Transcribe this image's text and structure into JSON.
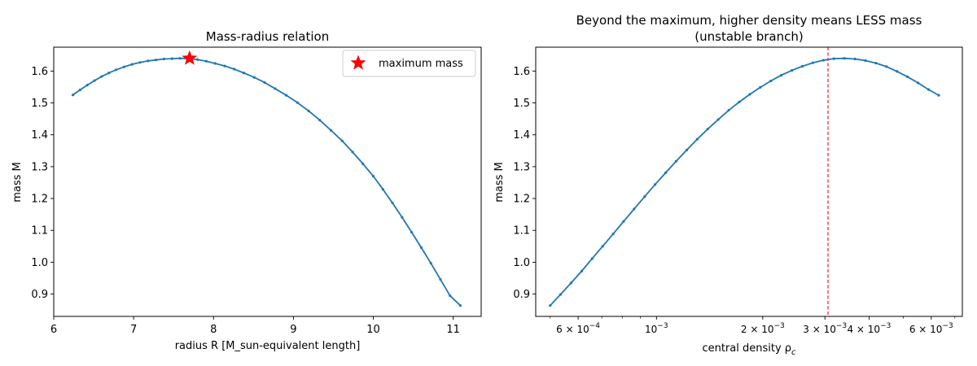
{
  "chart_data": [
    {
      "type": "line",
      "title": "Mass-radius relation",
      "xlabel": "radius R [M_sun-equivalent length]",
      "ylabel": "mass M",
      "xlim": [
        6.0,
        11.35
      ],
      "ylim": [
        0.83,
        1.675
      ],
      "xticks": [
        6,
        7,
        8,
        9,
        10,
        11
      ],
      "yticks": [
        0.9,
        1.0,
        1.1,
        1.2,
        1.3,
        1.4,
        1.5,
        1.6
      ],
      "grid": false,
      "legend_position": "top-right",
      "series": [
        {
          "color": "#1f77b4",
          "marker": "dot",
          "x": [
            6.24,
            6.33,
            6.42,
            6.51,
            6.6,
            6.69,
            6.78,
            6.88,
            6.98,
            7.08,
            7.18,
            7.28,
            7.38,
            7.48,
            7.58,
            7.69,
            7.8,
            7.91,
            8.02,
            8.14,
            8.26,
            8.38,
            8.51,
            8.64,
            8.77,
            8.91,
            9.05,
            9.19,
            9.33,
            9.47,
            9.61,
            9.74,
            9.87,
            10.0,
            10.12,
            10.24,
            10.36,
            10.48,
            10.6,
            10.72,
            10.84,
            10.96,
            11.09
          ],
          "y": [
            1.525,
            1.541,
            1.556,
            1.57,
            1.583,
            1.594,
            1.604,
            1.613,
            1.621,
            1.627,
            1.632,
            1.635,
            1.638,
            1.639,
            1.64,
            1.639,
            1.636,
            1.631,
            1.624,
            1.616,
            1.606,
            1.594,
            1.58,
            1.564,
            1.545,
            1.524,
            1.501,
            1.475,
            1.446,
            1.414,
            1.381,
            1.346,
            1.309,
            1.27,
            1.229,
            1.186,
            1.141,
            1.094,
            1.046,
            0.997,
            0.946,
            0.895,
            0.864
          ]
        },
        {
          "name": "maximum mass",
          "color": "#ff0000",
          "marker": "star",
          "x": [
            7.7
          ],
          "y": [
            1.64
          ]
        }
      ]
    },
    {
      "type": "line",
      "title": "Beyond the maximum, higher density means LESS mass",
      "subtitle": "(unstable branch)",
      "xlabel": "central density ρ_c",
      "ylabel": "mass M",
      "xscale": "log",
      "xlim": [
        0.000455,
        0.00735
      ],
      "ylim": [
        0.83,
        1.675
      ],
      "xticks": [
        0.0006,
        0.001,
        0.002,
        0.003,
        0.004,
        0.006
      ],
      "xtick_labels": [
        {
          "base": "6 × 10",
          "exp": "−4"
        },
        {
          "base": "10",
          "exp": "−3"
        },
        {
          "base": "2 × 10",
          "exp": "−3"
        },
        {
          "base": "3 × 10",
          "exp": "−3"
        },
        {
          "base": "4 × 10",
          "exp": "−3"
        },
        {
          "base": "6 × 10",
          "exp": "−3"
        }
      ],
      "yticks": [
        0.9,
        1.0,
        1.1,
        1.2,
        1.3,
        1.4,
        1.5,
        1.6
      ],
      "grid": false,
      "reference_line": {
        "orientation": "vertical",
        "x": 0.00306,
        "color": "#ff0000",
        "style": "dashed"
      },
      "series": [
        {
          "color": "#1f77b4",
          "marker": "dot",
          "x": [
            0.0005,
            0.000535,
            0.000573,
            0.000614,
            0.000657,
            0.000704,
            0.000754,
            0.000807,
            0.000864,
            0.000926,
            0.000991,
            0.001062,
            0.001137,
            0.001218,
            0.001304,
            0.001397,
            0.001496,
            0.001602,
            0.001716,
            0.001838,
            0.001968,
            0.002108,
            0.002257,
            0.002418,
            0.002589,
            0.002773,
            0.00297,
            0.00318,
            0.003406,
            0.003648,
            0.003907,
            0.004184,
            0.004481,
            0.004799,
            0.00514,
            0.005505,
            0.005896,
            0.0063
          ],
          "y": [
            0.864,
            0.899,
            0.935,
            0.972,
            1.011,
            1.05,
            1.089,
            1.128,
            1.167,
            1.206,
            1.244,
            1.281,
            1.317,
            1.352,
            1.386,
            1.418,
            1.448,
            1.477,
            1.503,
            1.527,
            1.549,
            1.569,
            1.587,
            1.602,
            1.615,
            1.626,
            1.634,
            1.639,
            1.64,
            1.638,
            1.633,
            1.625,
            1.614,
            1.599,
            1.582,
            1.563,
            1.542,
            1.524
          ]
        }
      ]
    }
  ]
}
